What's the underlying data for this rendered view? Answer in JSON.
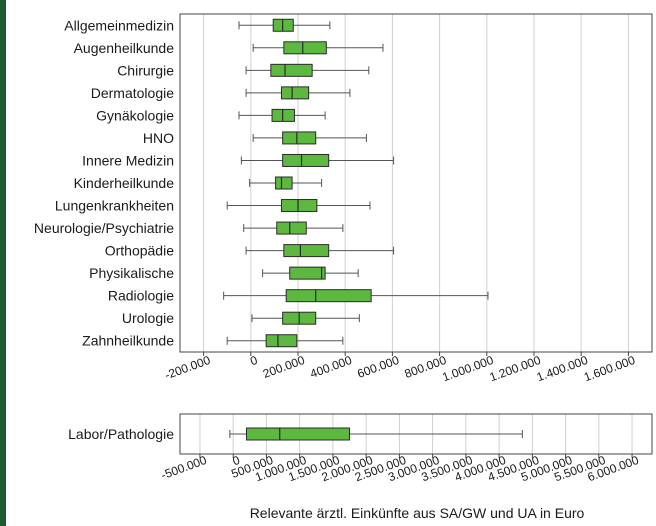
{
  "colors": {
    "frame": "#1f5a32",
    "box_fill": "#5cb83f",
    "box_stroke": "#2b2b2b",
    "grid": "#cfcfcf",
    "plot_border": "#444444"
  },
  "chart_data": [
    {
      "type": "boxplot",
      "orientation": "horizontal",
      "categories": [
        "Allgemeinmedizin",
        "Augenheilkunde",
        "Chirurgie",
        "Dermatologie",
        "Gynäkologie",
        "HNO",
        "Innere Medizin",
        "Kinderheilkunde",
        "Lungenkrankheiten",
        "Neurologie/Psychiatrie",
        "Orthopädie",
        "Physikalische",
        "Radiologie",
        "Urologie",
        "Zahnheilkunde"
      ],
      "boxes": [
        {
          "min": -50000,
          "q1": 95000,
          "median": 135000,
          "q3": 180000,
          "max": 335000
        },
        {
          "min": 10000,
          "q1": 140000,
          "median": 220000,
          "q3": 320000,
          "max": 560000
        },
        {
          "min": -20000,
          "q1": 85000,
          "median": 145000,
          "q3": 260000,
          "max": 500000
        },
        {
          "min": -20000,
          "q1": 130000,
          "median": 175000,
          "q3": 245000,
          "max": 420000
        },
        {
          "min": -50000,
          "q1": 90000,
          "median": 135000,
          "q3": 185000,
          "max": 315000
        },
        {
          "min": 10000,
          "q1": 135000,
          "median": 195000,
          "q3": 275000,
          "max": 490000
        },
        {
          "min": -40000,
          "q1": 135000,
          "median": 215000,
          "q3": 330000,
          "max": 605000
        },
        {
          "min": -5000,
          "q1": 105000,
          "median": 130000,
          "q3": 175000,
          "max": 300000
        },
        {
          "min": -100000,
          "q1": 130000,
          "median": 200000,
          "q3": 280000,
          "max": 505000
        },
        {
          "min": -30000,
          "q1": 110000,
          "median": 165000,
          "q3": 235000,
          "max": 390000
        },
        {
          "min": -20000,
          "q1": 140000,
          "median": 210000,
          "q3": 330000,
          "max": 605000
        },
        {
          "min": 50000,
          "q1": 165000,
          "median": 300000,
          "q3": 315000,
          "max": 455000
        },
        {
          "min": -115000,
          "q1": 150000,
          "median": 275000,
          "q3": 510000,
          "max": 1005000
        },
        {
          "min": 5000,
          "q1": 135000,
          "median": 205000,
          "q3": 275000,
          "max": 460000
        },
        {
          "min": -100000,
          "q1": 65000,
          "median": 115000,
          "q3": 195000,
          "max": 390000
        }
      ],
      "xlim": [
        -300000,
        1700000
      ],
      "xticks": [
        -200000,
        0,
        200000,
        400000,
        600000,
        800000,
        1000000,
        1200000,
        1400000,
        1600000
      ],
      "xtick_labels": [
        "-200.000",
        "0",
        "200.000",
        "400.000",
        "600.000",
        "800.000",
        "1.000.000",
        "1.200.000",
        "1.400.000",
        "1.600.000"
      ],
      "grid": true
    },
    {
      "type": "boxplot",
      "orientation": "horizontal",
      "categories": [
        "Labor/Pathologie"
      ],
      "boxes": [
        {
          "min": -50000,
          "q1": 200000,
          "median": 700000,
          "q3": 1750000,
          "max": 4350000
        }
      ],
      "xlim": [
        -800000,
        6300000
      ],
      "xticks": [
        -500000,
        0,
        500000,
        1000000,
        1500000,
        2000000,
        2500000,
        3000000,
        3500000,
        4000000,
        4500000,
        5000000,
        5500000,
        6000000
      ],
      "xtick_labels": [
        "-500.000",
        "0",
        "500.000",
        "1.000.000",
        "1.500.000",
        "2.000.000",
        "2.500.000",
        "3.000.000",
        "3.500.000",
        "4.000.000",
        "4.500.000",
        "5.000.000",
        "5.500.000",
        "6.000.000"
      ],
      "xlabel": "Relevante ärztl. Einkünfte aus SA/GW und UA in Euro",
      "grid": true
    }
  ]
}
